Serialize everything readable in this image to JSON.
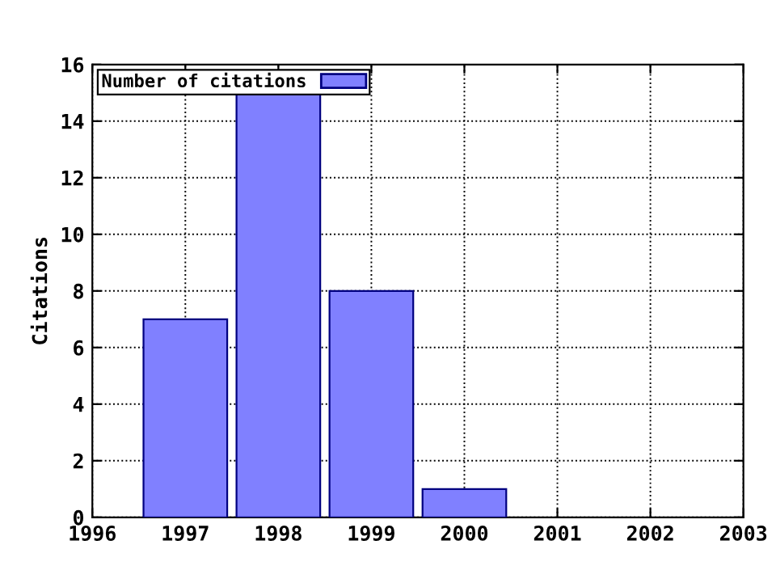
{
  "chart_data": {
    "type": "bar",
    "ylabel": "Citations",
    "x": [
      1997,
      1998,
      1999,
      2000
    ],
    "series": [
      {
        "name": "Number of citations",
        "color": "#8080ff",
        "values": [
          7,
          15,
          8,
          1
        ]
      }
    ],
    "xlim": [
      1996,
      2003
    ],
    "xticks": [
      1996,
      1997,
      1998,
      1999,
      2000,
      2001,
      2002,
      2003
    ],
    "ylim": [
      0,
      16
    ],
    "yticks": [
      0,
      2,
      4,
      6,
      8,
      10,
      12,
      14,
      16
    ],
    "grid": true,
    "legend": "top left",
    "line_style": "dotted"
  }
}
